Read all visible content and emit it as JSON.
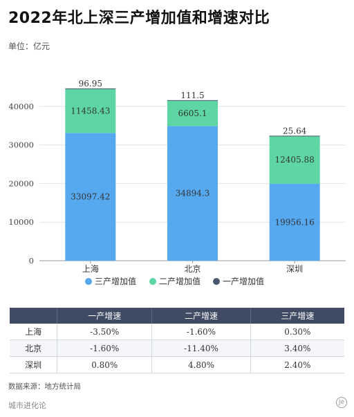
{
  "title": "2022年北上深三产增加值和增速对比",
  "unit": "单位：亿元",
  "chart_data": {
    "type": "bar",
    "stacked": true,
    "categories": [
      "上海",
      "北京",
      "深圳"
    ],
    "series": [
      {
        "name": "三产增加值",
        "values": [
          33097.42,
          34894.3,
          19956.16
        ],
        "color": "#56a9ee"
      },
      {
        "name": "二产增加值",
        "values": [
          11458.43,
          6605.1,
          12405.88
        ],
        "color": "#5dd6a4"
      },
      {
        "name": "一产增加值",
        "values": [
          96.95,
          111.5,
          25.64
        ],
        "color": "#4b5670"
      }
    ],
    "value_labels": [
      [
        "33097.42",
        "34894.3",
        "19956.16"
      ],
      [
        "11458.43",
        "6605.1",
        "12405.88"
      ],
      [
        "96.95",
        "111.5",
        "25.64"
      ]
    ],
    "yticks": [
      "0",
      "10000",
      "20000",
      "30000",
      "40000"
    ],
    "ylim": [
      0,
      50000
    ],
    "legend_position": "bottom"
  },
  "table": {
    "headers": [
      "",
      "一产增速",
      "二产增速",
      "三产增速"
    ],
    "rows": [
      [
        "上海",
        "-3.50%",
        "-1.60%",
        "0.30%"
      ],
      [
        "北京",
        "-1.60%",
        "-11.40%",
        "3.40%"
      ],
      [
        "深圳",
        "0.80%",
        "4.80%",
        "2.40%"
      ]
    ]
  },
  "source": "数据来源：地方统计局",
  "brand": "城市进化论",
  "logo_text": "Je"
}
